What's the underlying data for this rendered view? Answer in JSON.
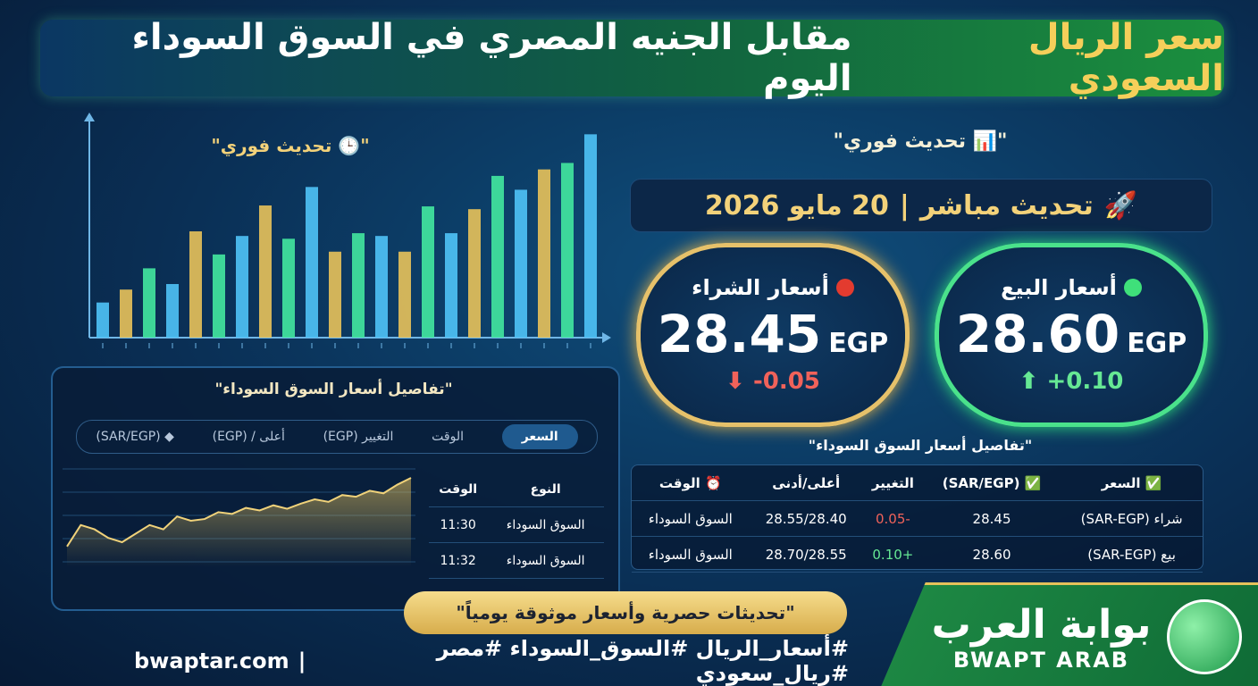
{
  "header": {
    "title_highlight": "سعر الريال السعودي",
    "title_rest": "مقابل الجنيه المصري في السوق السوداء اليوم"
  },
  "live_label_right": "\"تحديث فوري 📊\"",
  "live_label_left": "\"تحديث فوري 🕒\"",
  "date_bar": {
    "icon": "🚀",
    "label": "تحديث مباشر",
    "separator": "|",
    "date": "20 مايو 2026"
  },
  "cards": [
    {
      "title": "أسعار البيع",
      "price": "28.60",
      "currency": "EGP",
      "change": "+0.10"
    },
    {
      "title": "أسعار الشراء",
      "price": "28.45",
      "currency": "EGP",
      "change": "-0.05"
    }
  ],
  "table": {
    "title": "\"تفاصيل أسعار السوق السوداء\"",
    "headers": [
      "✅ السعر",
      "✅ (SAR/EGP)",
      "التغيير",
      "أعلى/أدنى",
      "⏰ الوقت"
    ],
    "rows": [
      [
        "شراء (SAR-EGP)",
        "28.45",
        "-0.05",
        "28.55/28.40",
        "السوق السوداء"
      ],
      [
        "بيع (SAR-EGP)",
        "28.60",
        "+0.10",
        "28.70/28.55",
        "السوق السوداء"
      ]
    ]
  },
  "details": {
    "title": "\"تفاصيل أسعار السوق السوداء\"",
    "tabs": [
      "السعر",
      "الوقت",
      "التغيير (EGP)",
      "أعلى / (EGP)",
      "◆ (SAR/EGP)"
    ],
    "table": {
      "headers": [
        "النوع",
        "الوقت"
      ],
      "rows": [
        [
          "السوق السوداء",
          "11:30"
        ],
        [
          "السوق السوداء",
          "11:32"
        ]
      ]
    }
  },
  "bar_chart": {
    "type": "bar",
    "values": [
      38,
      52,
      75,
      58,
      115,
      90,
      110,
      143,
      107,
      163,
      93,
      113,
      110,
      93,
      142,
      113,
      139,
      175,
      160,
      182,
      189,
      220
    ],
    "ylim": [
      0,
      230
    ],
    "colors": [
      "#4fc3f7",
      "#e8c25a",
      "#43e8a0"
    ]
  },
  "line_chart": {
    "type": "area",
    "values": [
      20,
      45,
      40,
      30,
      25,
      35,
      45,
      40,
      55,
      50,
      52,
      60,
      58,
      65,
      62,
      68,
      64,
      70,
      75,
      72,
      80,
      78,
      85,
      82,
      92,
      100
    ],
    "ylim": [
      0,
      100
    ],
    "color": "#f0d27a"
  },
  "footer": {
    "tagline": "\"تحديثات حصرية وأسعار موثوقة يومياً\"",
    "site": "bwaptar.com",
    "separator": "|",
    "hashtags": "#أسعار_الريال #السوق_السوداء #مصر #ريال_سعودي"
  },
  "logo": {
    "arabic": "بوابة العرب",
    "latin": "BWAPT ARAB"
  }
}
